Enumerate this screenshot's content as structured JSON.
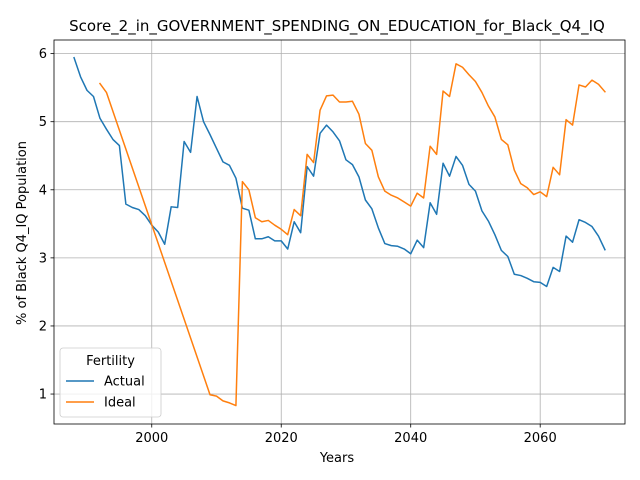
{
  "chart_data": {
    "type": "line",
    "title": "Score_2_in_GOVERNMENT_SPENDING_ON_EDUCATION_for_Black_Q4_IQ",
    "xlabel": "Years",
    "ylabel": "% of Black Q4_IQ Population",
    "xlim": [
      1984.9,
      2073.1
    ],
    "ylim": [
      0.56,
      6.2
    ],
    "xticks": [
      2000,
      2020,
      2040,
      2060
    ],
    "yticks": [
      1,
      2,
      3,
      4,
      5,
      6
    ],
    "grid": true,
    "legend": {
      "title": "Fertility",
      "placement": "lower-left",
      "entries": [
        "Actual",
        "Ideal"
      ]
    },
    "series": [
      {
        "name": "Actual",
        "color": "#1f77b4",
        "x": [
          1988,
          1989,
          1990,
          1991,
          1992,
          1993,
          1994,
          1995,
          1996,
          1997,
          1998,
          1999,
          2000,
          2001,
          2002,
          2003,
          2004,
          2005,
          2006,
          2007,
          2008,
          2009,
          2010,
          2011,
          2012,
          2013,
          2014,
          2015,
          2016,
          2017,
          2018,
          2019,
          2020,
          2021,
          2022,
          2023,
          2024,
          2025,
          2026,
          2027,
          2028,
          2029,
          2030,
          2031,
          2032,
          2033,
          2034,
          2035,
          2036,
          2037,
          2038,
          2039,
          2040,
          2041,
          2042,
          2043,
          2044,
          2045,
          2046,
          2047,
          2048,
          2049,
          2050,
          2051,
          2052,
          2053,
          2054,
          2055,
          2056,
          2057,
          2058,
          2059,
          2060,
          2061,
          2062,
          2063,
          2064,
          2065,
          2066,
          2067,
          2068,
          2069,
          2070
        ],
        "y": [
          5.94,
          5.66,
          5.46,
          5.37,
          5.05,
          4.89,
          4.74,
          4.65,
          3.79,
          3.74,
          3.71,
          3.62,
          3.48,
          3.38,
          3.2,
          3.75,
          3.74,
          4.71,
          4.55,
          5.37,
          5.0,
          4.81,
          4.61,
          4.41,
          4.36,
          4.17,
          3.73,
          3.7,
          3.28,
          3.28,
          3.31,
          3.25,
          3.25,
          3.13,
          3.53,
          3.37,
          4.34,
          4.2,
          4.83,
          4.95,
          4.85,
          4.72,
          4.44,
          4.37,
          4.19,
          3.85,
          3.72,
          3.44,
          3.21,
          3.18,
          3.17,
          3.13,
          3.06,
          3.26,
          3.15,
          3.81,
          3.64,
          4.39,
          4.2,
          4.49,
          4.36,
          4.08,
          3.98,
          3.69,
          3.54,
          3.34,
          3.11,
          3.02,
          2.76,
          2.74,
          2.7,
          2.65,
          2.64,
          2.58,
          2.86,
          2.8,
          3.32,
          3.23,
          3.56,
          3.52,
          3.46,
          3.32,
          3.12
        ]
      },
      {
        "name": "Ideal",
        "color": "#ff7f0e",
        "x": [
          1992,
          1993,
          2009,
          2010,
          2011,
          2012,
          2013,
          2014,
          2015,
          2016,
          2017,
          2018,
          2019,
          2020,
          2021,
          2022,
          2023,
          2024,
          2025,
          2026,
          2027,
          2028,
          2029,
          2030,
          2031,
          2032,
          2033,
          2034,
          2035,
          2036,
          2037,
          2038,
          2039,
          2040,
          2041,
          2042,
          2043,
          2044,
          2045,
          2046,
          2047,
          2048,
          2049,
          2050,
          2051,
          2052,
          2053,
          2054,
          2055,
          2056,
          2057,
          2058,
          2059,
          2060,
          2061,
          2062,
          2063,
          2064,
          2065,
          2066,
          2067,
          2068,
          2069,
          2070
        ],
        "y": [
          5.56,
          5.43,
          0.99,
          0.97,
          0.9,
          0.87,
          0.83,
          4.12,
          4.0,
          3.59,
          3.53,
          3.55,
          3.48,
          3.42,
          3.34,
          3.71,
          3.62,
          4.52,
          4.4,
          5.17,
          5.38,
          5.39,
          5.29,
          5.29,
          5.3,
          5.11,
          4.68,
          4.58,
          4.19,
          3.98,
          3.92,
          3.88,
          3.82,
          3.76,
          3.95,
          3.88,
          4.64,
          4.52,
          5.45,
          5.37,
          5.85,
          5.8,
          5.69,
          5.59,
          5.43,
          5.23,
          5.07,
          4.74,
          4.66,
          4.29,
          4.09,
          4.03,
          3.93,
          3.97,
          3.9,
          4.33,
          4.22,
          5.03,
          4.95,
          5.54,
          5.51,
          5.61,
          5.55,
          5.44
        ]
      }
    ]
  }
}
